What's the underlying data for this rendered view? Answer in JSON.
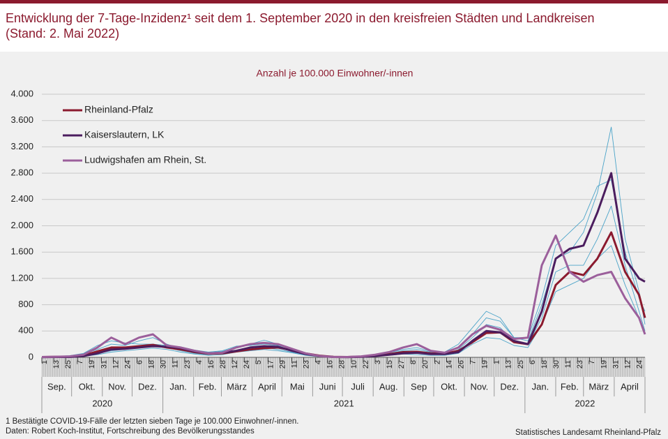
{
  "chart_data": {
    "type": "line",
    "title": [
      "Entwicklung der 7-Tage-Inzidenz¹ seit dem 1. September 2020 in den kreisfreien Städten und Landkreisen",
      "(Stand: 2. Mai 2022)"
    ],
    "subtitle": "Anzahl je 100.000 Einwohner/-innen",
    "footnotes": [
      "1 Bestätigte COVID-19-Fälle  der letzten sieben Tage  je 100.000  Einwohner/-innen.",
      "Daten: Robert  Koch-Institut, Fortschreibung  des  Bevölkerungsstandes"
    ],
    "source": "Statistisches Landesamt Rheinland-Pfalz",
    "legend": "upper left",
    "grid": true,
    "ylim": [
      0,
      4000
    ],
    "yticks": [
      0,
      400,
      800,
      {
        "value": 1200,
        "label": "1.200"
      },
      {
        "value": 1600,
        "label": "1.600"
      },
      {
        "value": 2000,
        "label": "2.000"
      },
      {
        "value": 2400,
        "label": "2.400"
      },
      {
        "value": 2800,
        "label": "2.800"
      },
      {
        "value": 3200,
        "label": "3.200"
      },
      {
        "value": 3600,
        "label": "3.600"
      },
      {
        "value": 4000,
        "label": "4.000"
      }
    ],
    "xlim": [
      "2020-09-01",
      "2022-05-02"
    ],
    "xticks": [
      {
        "value": "2020-09-01",
        "label": "1"
      },
      {
        "value": "2020-09-13",
        "label": "13"
      },
      {
        "value": "2020-09-25",
        "label": "25"
      },
      {
        "value": "2020-10-07",
        "label": "7"
      },
      {
        "value": "2020-10-19",
        "label": "19"
      },
      {
        "value": "2020-10-31",
        "label": "31"
      },
      {
        "value": "2020-11-12",
        "label": "12"
      },
      {
        "value": "2020-11-24",
        "label": "24"
      },
      {
        "value": "2020-12-06",
        "label": "6"
      },
      {
        "value": "2020-12-18",
        "label": "18"
      },
      {
        "value": "2020-12-30",
        "label": "30"
      },
      {
        "value": "2021-01-11",
        "label": "11"
      },
      {
        "value": "2021-01-23",
        "label": "23"
      },
      {
        "value": "2021-02-04",
        "label": "4"
      },
      {
        "value": "2021-02-16",
        "label": "16"
      },
      {
        "value": "2021-02-28",
        "label": "28"
      },
      {
        "value": "2021-03-12",
        "label": "12"
      },
      {
        "value": "2021-03-24",
        "label": "24"
      },
      {
        "value": "2021-04-05",
        "label": "5"
      },
      {
        "value": "2021-04-17",
        "label": "17"
      },
      {
        "value": "2021-04-29",
        "label": "29"
      },
      {
        "value": "2021-05-11",
        "label": "11"
      },
      {
        "value": "2021-05-23",
        "label": "23"
      },
      {
        "value": "2021-06-04",
        "label": "4"
      },
      {
        "value": "2021-06-16",
        "label": "16"
      },
      {
        "value": "2021-06-28",
        "label": "28"
      },
      {
        "value": "2021-07-10",
        "label": "10"
      },
      {
        "value": "2021-07-22",
        "label": "22"
      },
      {
        "value": "2021-08-03",
        "label": "3"
      },
      {
        "value": "2021-08-15",
        "label": "15"
      },
      {
        "value": "2021-08-27",
        "label": "27"
      },
      {
        "value": "2021-09-08",
        "label": "8"
      },
      {
        "value": "2021-09-20",
        "label": "20"
      },
      {
        "value": "2021-10-02",
        "label": "2"
      },
      {
        "value": "2021-10-14",
        "label": "14"
      },
      {
        "value": "2021-10-26",
        "label": "26"
      },
      {
        "value": "2021-11-07",
        "label": "7"
      },
      {
        "value": "2021-11-19",
        "label": "19"
      },
      {
        "value": "2021-12-01",
        "label": "1"
      },
      {
        "value": "2021-12-13",
        "label": "13"
      },
      {
        "value": "2021-12-25",
        "label": "25"
      },
      {
        "value": "2022-01-06",
        "label": "6"
      },
      {
        "value": "2022-01-18",
        "label": "18"
      },
      {
        "value": "2022-01-30",
        "label": "30"
      },
      {
        "value": "2022-02-11",
        "label": "11"
      },
      {
        "value": "2022-02-23",
        "label": "23"
      },
      {
        "value": "2022-03-07",
        "label": "7"
      },
      {
        "value": "2022-03-19",
        "label": "19"
      },
      {
        "value": "2022-03-31",
        "label": "31"
      },
      {
        "value": "2022-04-12",
        "label": "12"
      },
      {
        "value": "2022-04-24",
        "label": "24"
      }
    ],
    "months": [
      {
        "label": "Sep.",
        "start": "2020-09-01"
      },
      {
        "label": "Okt.",
        "start": "2020-10-01"
      },
      {
        "label": "Nov.",
        "start": "2020-11-01"
      },
      {
        "label": "Dez.",
        "start": "2020-12-01"
      },
      {
        "label": "Jan.",
        "start": "2021-01-01"
      },
      {
        "label": "Feb.",
        "start": "2021-02-01"
      },
      {
        "label": "März",
        "start": "2021-03-01"
      },
      {
        "label": "April",
        "start": "2021-04-01"
      },
      {
        "label": "Mai",
        "start": "2021-05-01"
      },
      {
        "label": "Juni",
        "start": "2021-06-01"
      },
      {
        "label": "Juli",
        "start": "2021-07-01"
      },
      {
        "label": "Aug.",
        "start": "2021-08-01"
      },
      {
        "label": "Sep",
        "start": "2021-09-01"
      },
      {
        "label": "Okt.",
        "start": "2021-10-01"
      },
      {
        "label": "Nov.",
        "start": "2021-11-01"
      },
      {
        "label": "Dez.",
        "start": "2021-12-01"
      },
      {
        "label": "Jan.",
        "start": "2022-01-01"
      },
      {
        "label": "Feb.",
        "start": "2022-02-01"
      },
      {
        "label": "März",
        "start": "2022-03-01"
      },
      {
        "label": "April",
        "start": "2022-04-01"
      }
    ],
    "years": [
      {
        "label": "2020",
        "start": "2020-09-01"
      },
      {
        "label": "2021",
        "start": "2021-01-01"
      },
      {
        "label": "2022",
        "start": "2022-01-01"
      }
    ],
    "x": [
      "2020-09-01",
      "2020-09-15",
      "2020-09-29",
      "2020-10-13",
      "2020-10-27",
      "2020-11-10",
      "2020-11-24",
      "2020-12-08",
      "2020-12-22",
      "2021-01-05",
      "2021-01-19",
      "2021-02-02",
      "2021-02-16",
      "2021-03-02",
      "2021-03-16",
      "2021-03-30",
      "2021-04-13",
      "2021-04-27",
      "2021-05-11",
      "2021-05-25",
      "2021-06-08",
      "2021-06-22",
      "2021-07-06",
      "2021-07-20",
      "2021-08-03",
      "2021-08-17",
      "2021-08-31",
      "2021-09-14",
      "2021-09-28",
      "2021-10-12",
      "2021-10-26",
      "2021-11-09",
      "2021-11-23",
      "2021-12-07",
      "2021-12-21",
      "2022-01-04",
      "2022-01-18",
      "2022-02-01",
      "2022-02-15",
      "2022-03-01",
      "2022-03-15",
      "2022-03-29",
      "2022-04-12",
      "2022-04-26",
      "2022-05-02"
    ],
    "series": [
      {
        "color": "#4aa3c8",
        "width": 0.9,
        "values": [
          5,
          10,
          20,
          50,
          120,
          200,
          180,
          250,
          300,
          200,
          130,
          90,
          70,
          90,
          150,
          200,
          260,
          200,
          120,
          50,
          15,
          5,
          5,
          15,
          30,
          60,
          100,
          120,
          80,
          70,
          150,
          350,
          600,
          550,
          300,
          250,
          800,
          1500,
          1600,
          1900,
          2500,
          3500,
          1800,
          1000,
          500
        ]
      },
      {
        "color": "#4aa3c8",
        "width": 0.9,
        "values": [
          3,
          5,
          10,
          20,
          60,
          100,
          120,
          150,
          200,
          150,
          100,
          60,
          40,
          60,
          100,
          120,
          150,
          120,
          80,
          40,
          10,
          3,
          3,
          10,
          20,
          40,
          70,
          60,
          50,
          40,
          120,
          300,
          500,
          450,
          250,
          200,
          600,
          1300,
          1400,
          1400,
          1800,
          2300,
          1400,
          700,
          400
        ]
      },
      {
        "color": "#4aa3c8",
        "width": 0.9,
        "values": [
          8,
          15,
          25,
          60,
          180,
          250,
          220,
          200,
          200,
          180,
          160,
          110,
          80,
          100,
          170,
          180,
          200,
          180,
          100,
          40,
          10,
          5,
          8,
          20,
          40,
          70,
          120,
          150,
          90,
          80,
          200,
          450,
          700,
          600,
          300,
          300,
          900,
          1700,
          1900,
          2100,
          2600,
          2700,
          1600,
          900,
          700
        ]
      },
      {
        "color": "#4aa3c8",
        "width": 0.9,
        "values": [
          2,
          3,
          5,
          15,
          40,
          80,
          100,
          120,
          140,
          120,
          80,
          50,
          30,
          40,
          80,
          100,
          120,
          100,
          70,
          30,
          8,
          2,
          2,
          5,
          15,
          30,
          50,
          40,
          30,
          30,
          60,
          200,
          300,
          280,
          180,
          150,
          500,
          1000,
          1100,
          1200,
          1500,
          1700,
          1100,
          600,
          350
        ]
      },
      {
        "name": "Rheinland-Pfalz",
        "color": "#8b1a2e",
        "width": 3,
        "values": [
          5,
          8,
          10,
          30,
          90,
          150,
          150,
          170,
          190,
          150,
          120,
          80,
          55,
          60,
          90,
          120,
          140,
          150,
          110,
          60,
          25,
          8,
          5,
          12,
          25,
          50,
          80,
          85,
          60,
          55,
          100,
          230,
          370,
          380,
          230,
          200,
          500,
          1100,
          1300,
          1250,
          1500,
          1900,
          1300,
          950,
          600
        ]
      },
      {
        "name": "Kaiserslautern, LK",
        "color": "#4b1d5e",
        "width": 3,
        "values": [
          3,
          5,
          5,
          20,
          60,
          120,
          130,
          150,
          170,
          160,
          140,
          90,
          60,
          70,
          100,
          150,
          170,
          160,
          100,
          50,
          20,
          5,
          3,
          8,
          20,
          40,
          60,
          70,
          50,
          50,
          80,
          250,
          400,
          380,
          250,
          200,
          700,
          1500,
          1650,
          1700,
          2200,
          2800,
          1500,
          1200,
          1150
        ]
      },
      {
        "name": "Ludwigshafen am Rhein, St.",
        "color": "#9b5f9b",
        "width": 3,
        "values": [
          5,
          10,
          15,
          40,
          150,
          300,
          200,
          300,
          350,
          180,
          150,
          100,
          60,
          70,
          150,
          200,
          220,
          200,
          130,
          60,
          20,
          5,
          5,
          15,
          40,
          80,
          150,
          200,
          100,
          70,
          150,
          350,
          480,
          420,
          280,
          300,
          1400,
          1850,
          1300,
          1150,
          1250,
          1300,
          900,
          600,
          350
        ]
      }
    ]
  }
}
